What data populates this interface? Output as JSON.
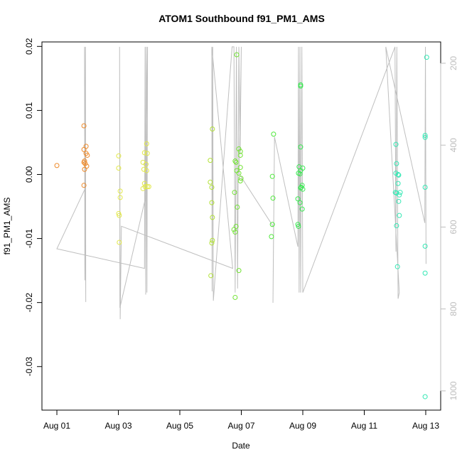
{
  "chart_data": {
    "type": "scatter",
    "title": "ATOM1 Southbound f91_PM1_AMS",
    "x_label": "Date",
    "y_label": "f91_PM1_AMS",
    "xlim": [
      0.514,
      13.486
    ],
    "xticks": [
      {
        "value": 1,
        "label": "Aug 01"
      },
      {
        "value": 3,
        "label": "Aug 03"
      },
      {
        "value": 5,
        "label": "Aug 05"
      },
      {
        "value": 7,
        "label": "Aug 07"
      },
      {
        "value": 9,
        "label": "Aug 09"
      },
      {
        "value": 11,
        "label": "Aug 11"
      },
      {
        "value": 13,
        "label": "Aug 13"
      }
    ],
    "ylim": [
      -0.0368,
      0.0207
    ],
    "yticks": [
      -0.03,
      -0.02,
      -0.01,
      {
        "value": 0,
        "label": "0.00"
      },
      0.01,
      0.02
    ],
    "y2lim": [
      1047,
      148
    ],
    "y2ticks": [
      200,
      400,
      600,
      800,
      1000
    ],
    "series": [
      {
        "type": "line",
        "axis": "y2",
        "color": "#bfbfbf",
        "x": [
          1.92,
          1.9,
          1.91,
          1.93,
          1.94,
          1.92,
          1.0,
          3.85,
          3.87,
          3.89,
          3.91,
          3.93,
          3.95,
          3.88,
          3.05,
          3.04,
          3.06,
          3.1,
          6.72,
          6.04,
          6.05,
          6.07,
          6.09,
          6.7,
          6.76,
          6.8,
          6.84,
          6.88,
          6.92,
          6.96,
          7.0,
          6.93,
          8.05,
          8.03,
          8.08,
          8.84,
          8.86,
          8.88,
          8.91,
          8.93,
          8.97,
          9.0,
          12.0,
          12.03,
          12.06,
          12.1,
          12.14,
          11.7,
          12.97,
          12.99,
          13.01
        ],
        "values": [
          506,
          160,
          730,
          160,
          783,
          506,
          653,
          701,
          160,
          765,
          160,
          760,
          160,
          530,
          797,
          160,
          825,
          598,
          701,
          160,
          757,
          160,
          780,
          160,
          160,
          760,
          160,
          750,
          160,
          420,
          160,
          470,
          600,
          785,
          380,
          648,
          160,
          760,
          160,
          760,
          160,
          760,
          160,
          660,
          160,
          775,
          760,
          160,
          590,
          160,
          690
        ]
      },
      {
        "color": "#ee8a2a",
        "x": [
          1.0,
          1.88,
          1.88,
          1.95,
          1.95,
          1.99,
          1.9,
          1.92,
          1.97,
          1.9,
          1.88,
          1.88
        ],
        "values": [
          0.0014,
          0.0076,
          0.0039,
          0.0044,
          0.0033,
          0.003,
          0.0021,
          0.0017,
          0.0013,
          0.0008,
          -0.0017,
          0.0019
        ]
      },
      {
        "color": "#e2e84a",
        "x": [
          3.01,
          3.01,
          3.06,
          3.06,
          3.01,
          3.03,
          3.03,
          3.92,
          3.85,
          3.94,
          3.8,
          3.9,
          3.83,
          3.92,
          3.85,
          3.94,
          3.87,
          3.99,
          3.8
        ],
        "values": [
          0.0029,
          0.001,
          -0.0026,
          -0.0036,
          -0.0061,
          -0.0064,
          -0.0106,
          0.0048,
          0.0034,
          0.0033,
          0.0019,
          0.0016,
          0.0008,
          0.0006,
          -0.0014,
          -0.0019,
          -0.0019,
          -0.0019,
          -0.0022
        ]
      },
      {
        "color": "#b2e236",
        "x": [
          6.06,
          5.99,
          5.99,
          6.04,
          6.04,
          6.06,
          6.06,
          6.04,
          6.01
        ],
        "values": [
          0.0071,
          0.0022,
          -0.0012,
          -0.002,
          -0.0044,
          -0.0067,
          -0.0103,
          -0.0107,
          -0.0158
        ]
      },
      {
        "color": "#72e234",
        "x": [
          6.85,
          6.92,
          6.97,
          6.97,
          6.8,
          6.83,
          6.97,
          6.85,
          6.92,
          6.99,
          6.97,
          6.78,
          6.87,
          6.83,
          6.76,
          6.8,
          6.92,
          6.8
        ],
        "values": [
          0.0187,
          0.004,
          0.0036,
          0.003,
          0.0021,
          0.0019,
          0.0011,
          0.0006,
          0.0002,
          -0.0006,
          -0.001,
          -0.0028,
          -0.0051,
          -0.0081,
          -0.0086,
          -0.009,
          -0.015,
          -0.0192
        ]
      },
      {
        "color": "#4ee83a",
        "x": [
          8.05,
          8.01,
          8.03,
          8.01,
          7.98
        ],
        "values": [
          0.0063,
          -0.0003,
          -0.0037,
          -0.0078,
          -0.0097
        ]
      },
      {
        "color": "#3ae852",
        "x": [
          8.93,
          8.93,
          8.93,
          8.88,
          9.0,
          8.93,
          8.86,
          8.91,
          8.98,
          8.95,
          9.0,
          8.93,
          8.84,
          8.91,
          8.98,
          8.84,
          8.86
        ],
        "values": [
          0.014,
          0.0138,
          0.0043,
          0.0012,
          0.001,
          0.0006,
          0.0002,
          0.0001,
          -0.0017,
          -0.002,
          -0.0023,
          -0.0021,
          -0.0038,
          -0.0044,
          -0.0054,
          -0.0078,
          -0.0081
        ]
      },
      {
        "color": "#34e8b4",
        "x": [
          12.03,
          12.05,
          12.03,
          12.1,
          12.12,
          12.1,
          12.01,
          12.05,
          12.17,
          12.14,
          12.12,
          12.14,
          12.05,
          12.08,
          13.03,
          12.98,
          12.98,
          12.98,
          12.98,
          12.98,
          12.98
        ],
        "values": [
          0.0047,
          0.0017,
          0.0002,
          0,
          -0.0001,
          -0.0014,
          -0.0028,
          -0.0029,
          -0.0028,
          -0.0032,
          -0.0042,
          -0.0064,
          -0.008,
          -0.0144,
          0.0183,
          0.0058,
          0.0061,
          -0.002,
          -0.0112,
          -0.0154,
          -0.0347
        ]
      }
    ]
  }
}
